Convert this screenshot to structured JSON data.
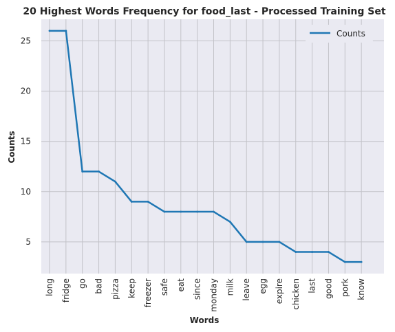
{
  "chart_data": {
    "type": "line",
    "title": "20 Highest Words Frequency for food_last - Processed Training Set",
    "xlabel": "Words",
    "ylabel": "Counts",
    "categories": [
      "long",
      "fridge",
      "go",
      "bad",
      "pizza",
      "keep",
      "freezer",
      "safe",
      "eat",
      "since",
      "monday",
      "milk",
      "leave",
      "egg",
      "expire",
      "chicken",
      "last",
      "good",
      "pork",
      "know"
    ],
    "series": [
      {
        "name": "Counts",
        "values": [
          26,
          26,
          12,
          12,
          11,
          9,
          9,
          8,
          8,
          8,
          8,
          7,
          5,
          5,
          5,
          4,
          4,
          4,
          3,
          3
        ]
      }
    ],
    "ylim": [
      1.85,
      27.15
    ],
    "yticks": [
      5,
      10,
      15,
      20,
      25
    ],
    "grid": true,
    "legend": "top-right",
    "colors": {
      "line": "#1f77b4",
      "plot_bg": "#eaeaf2",
      "grid": "#c2c2c8"
    }
  }
}
